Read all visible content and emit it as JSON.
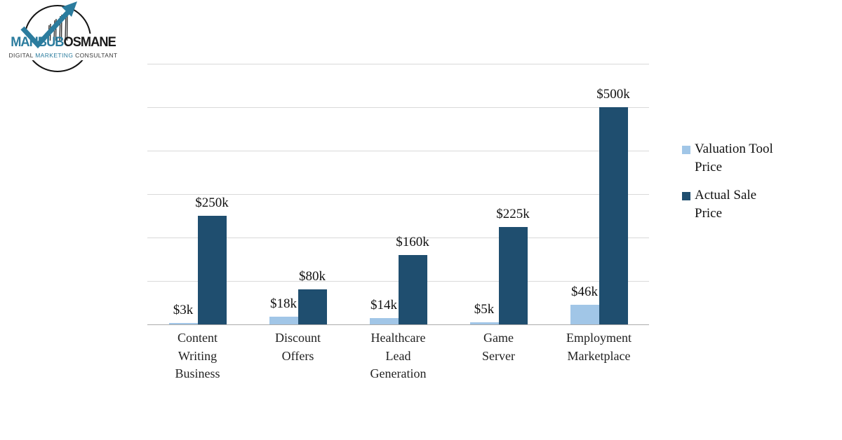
{
  "logo": {
    "name_part1": "MAHBUB",
    "name_part2": "OSMANE",
    "tagline_part1": "DIGITAL ",
    "tagline_part2": "MARKETING",
    "tagline_part3": " CONSULTANT",
    "accent_color": "#2b7c9e"
  },
  "chart_data": {
    "type": "bar",
    "title": "",
    "xlabel": "",
    "ylabel": "",
    "categories": [
      "Content Writing Business",
      "Discount Offers",
      "Healthcare Lead Generation",
      "Game Server",
      "Employment Marketplace"
    ],
    "category_lines": [
      [
        "Content",
        "Writing",
        "Business"
      ],
      [
        "Discount",
        "Offers"
      ],
      [
        "Healthcare",
        "Lead",
        "Generation"
      ],
      [
        "Game",
        "Server"
      ],
      [
        "Employment",
        "Marketplace"
      ]
    ],
    "series": [
      {
        "name": "Valuation Tool Price",
        "color": "#a1c6e7",
        "values": [
          3000,
          18000,
          14000,
          5000,
          46000
        ],
        "labels": [
          "$3k",
          "$18k",
          "$14k",
          "$5k",
          "$46k"
        ]
      },
      {
        "name": "Actual Sale Price",
        "color": "#1f4e6f",
        "values": [
          250000,
          80000,
          160000,
          225000,
          500000
        ],
        "labels": [
          "$250k",
          "$80k",
          "$160k",
          "$225k",
          "$500k"
        ]
      }
    ],
    "ylim": [
      0,
      600000
    ],
    "gridline_step": 100000,
    "grid": true,
    "y_tick_labels_visible": false,
    "legend_position": "right",
    "gridline_color": "#d9d9d9",
    "axis_line_color": "#ababab"
  }
}
